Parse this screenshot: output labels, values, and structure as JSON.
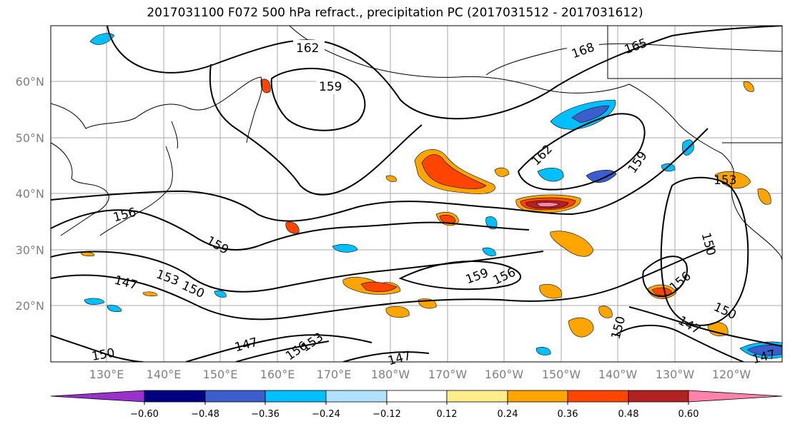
{
  "title": "2017031100 F072 500 hPa refract., precipitation PC (2017031512 - 2017031612)",
  "map": {
    "lon_labels": [
      "130°E",
      "140°E",
      "150°E",
      "160°E",
      "170°E",
      "180°W",
      "170°W",
      "160°W",
      "150°W",
      "140°W",
      "130°W",
      "120°W"
    ],
    "lat_labels": [
      "60°N",
      "50°N",
      "40°N",
      "30°N",
      "20°N"
    ],
    "contour_labels": [
      "162",
      "168",
      "165",
      "159",
      "162",
      "159",
      "153",
      "156",
      "159",
      "150",
      "159",
      "156",
      "156",
      "153",
      "150",
      "147",
      "150",
      "150",
      "147",
      "150",
      "147",
      "147",
      "156",
      "153",
      "147"
    ]
  },
  "colorbar": {
    "ticks": [
      "−0.60",
      "−0.48",
      "−0.36",
      "−0.24",
      "−0.12",
      "0.12",
      "0.24",
      "0.36",
      "0.48",
      "0.60"
    ],
    "colors": [
      "#9932cc",
      "#000080",
      "#3a5fcd",
      "#00bfff",
      "#b0e2ff",
      "#ffffff",
      "#ffec8b",
      "#ffa500",
      "#ff4500",
      "#b22222",
      "#ff82ab"
    ]
  }
}
